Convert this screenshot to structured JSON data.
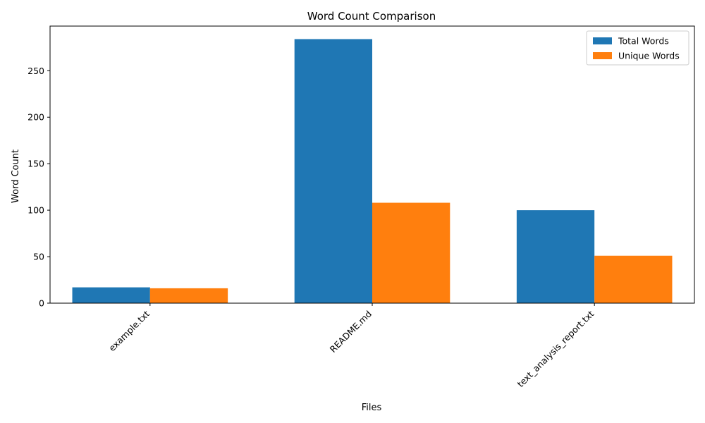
{
  "chart_data": {
    "type": "bar",
    "title": "Word Count Comparison",
    "xlabel": "Files",
    "ylabel": "Word Count",
    "categories": [
      "example.txt",
      "README.md",
      "text_analysis_report.txt"
    ],
    "series": [
      {
        "name": "Total Words",
        "values": [
          17,
          284,
          100
        ],
        "color": "#1f77b4"
      },
      {
        "name": "Unique Words",
        "values": [
          16,
          108,
          51
        ],
        "color": "#ff7f0e"
      }
    ],
    "ylim": [
      0,
      298
    ],
    "yticks": [
      0,
      50,
      100,
      150,
      200,
      250
    ],
    "legend_position": "top-right",
    "grid": false
  }
}
